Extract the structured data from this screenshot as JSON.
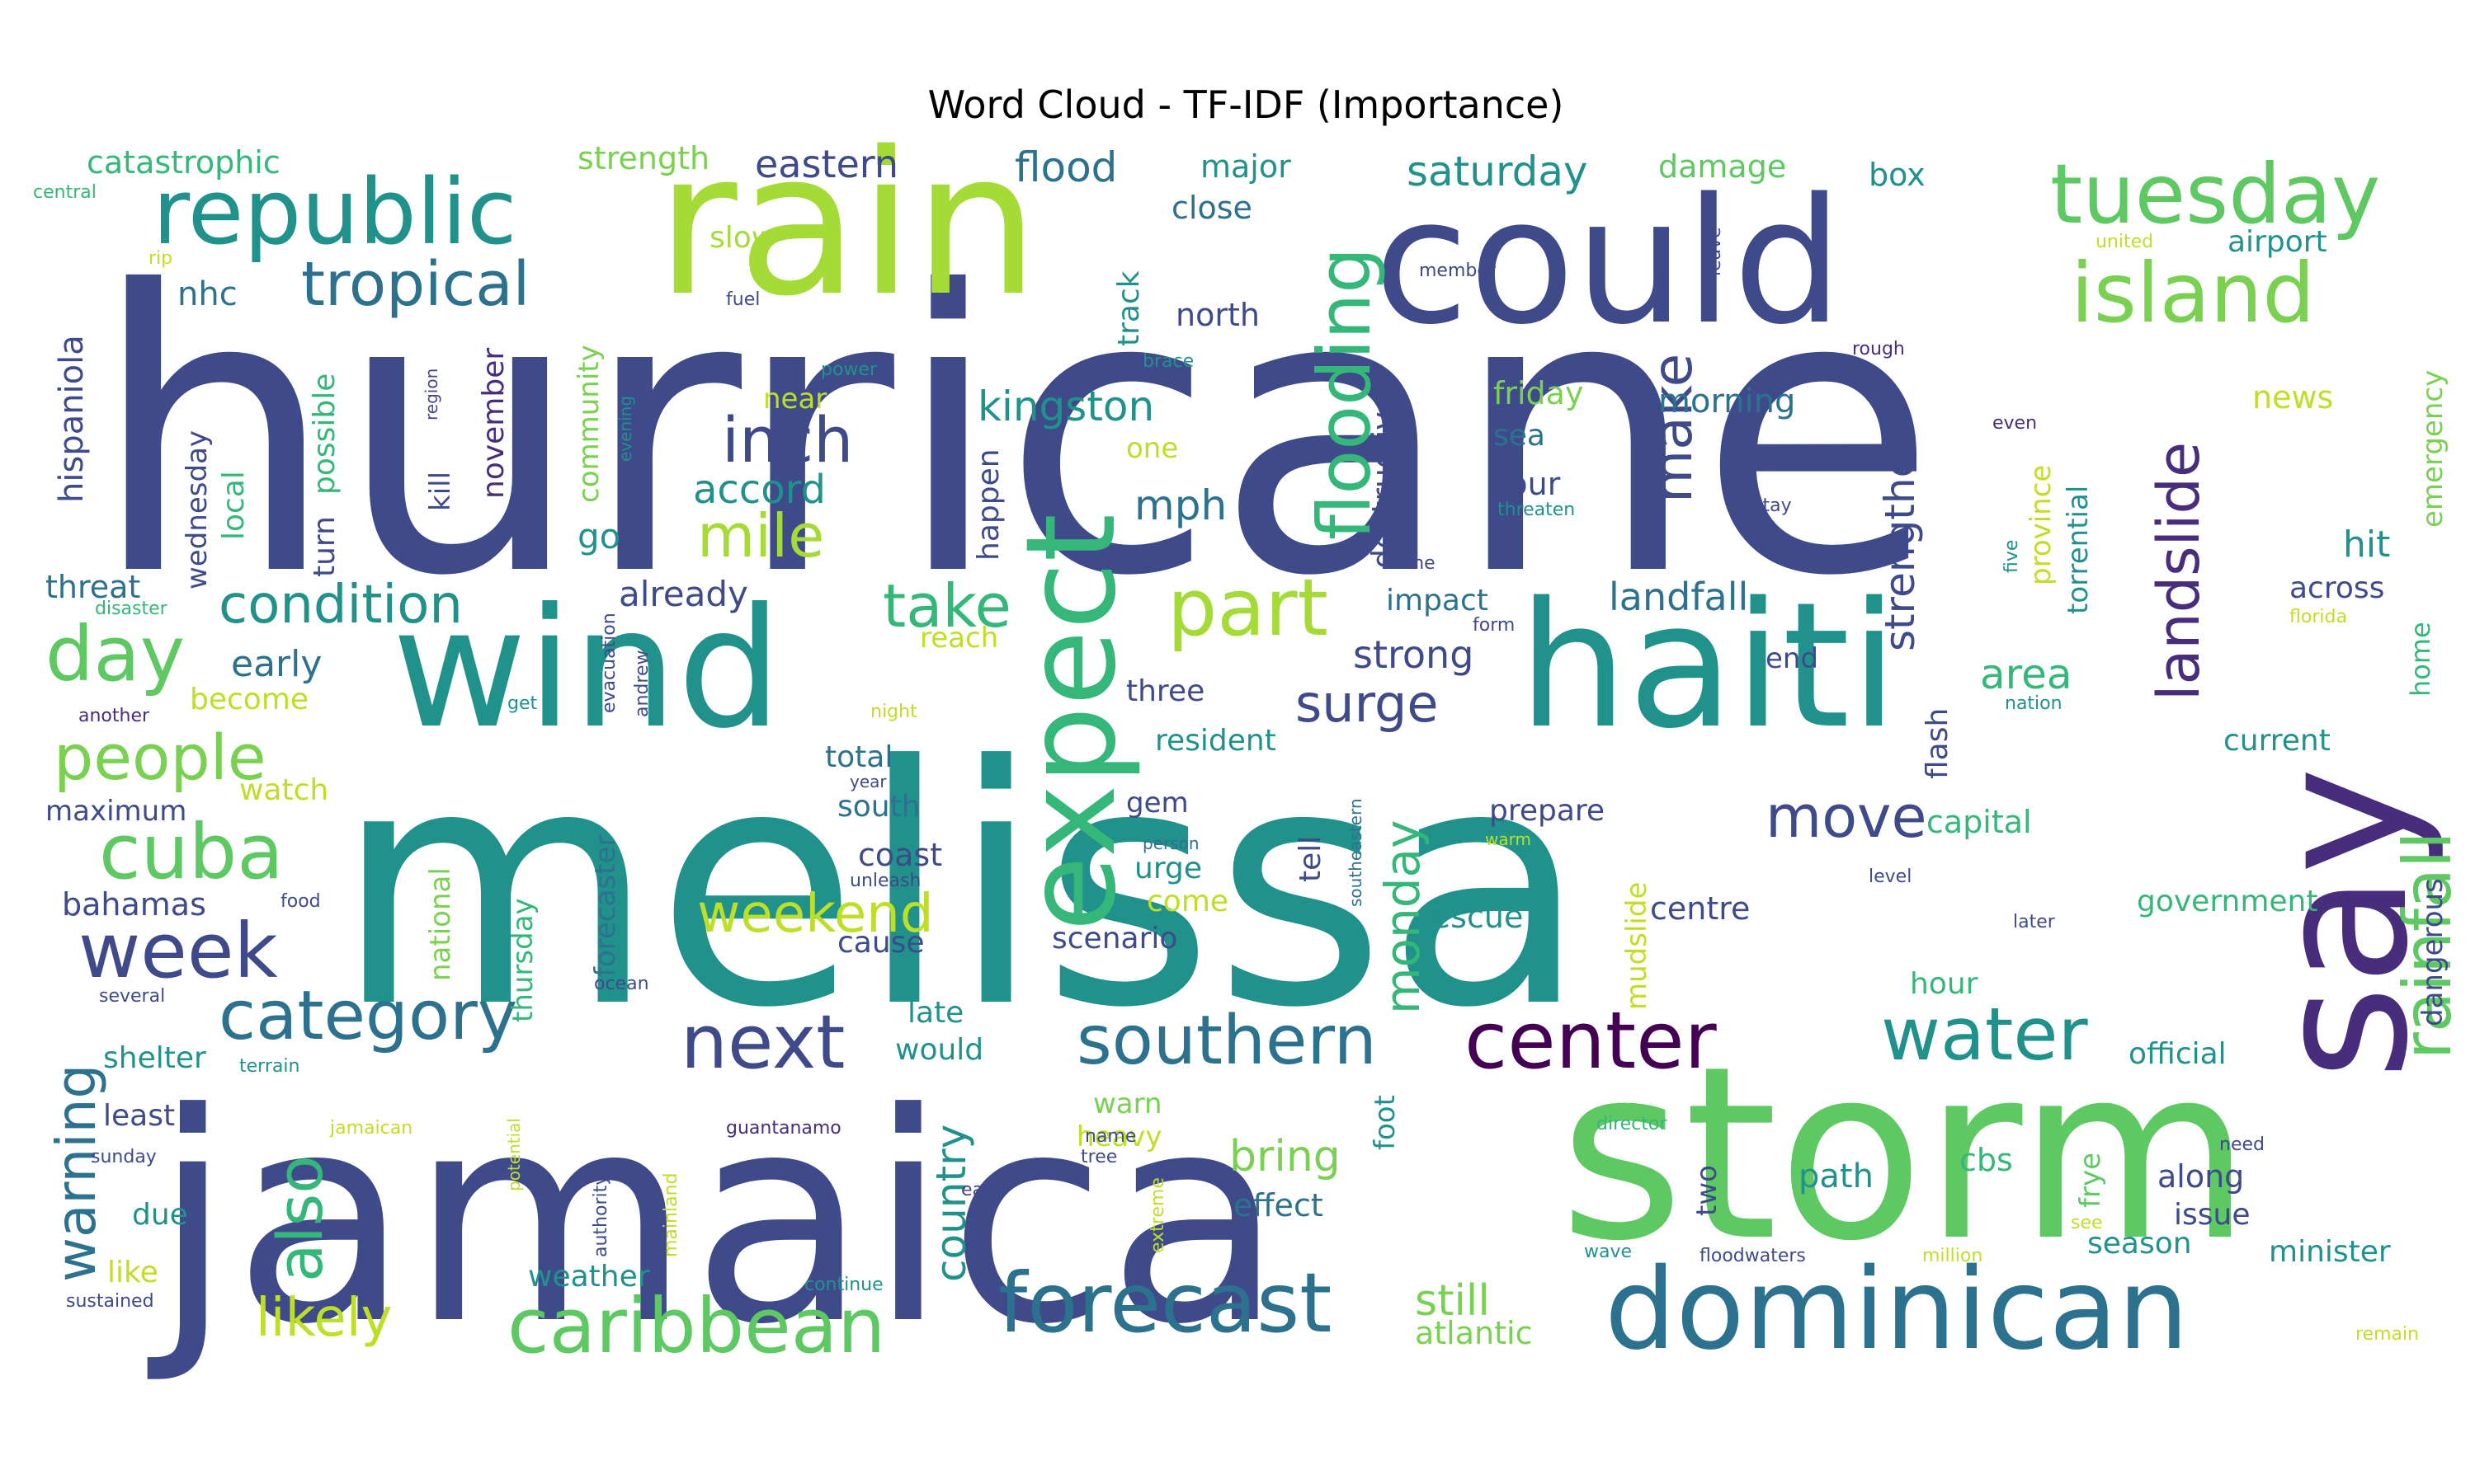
{
  "chart_data": {
    "type": "wordcloud",
    "title": "Word Cloud - TF-IDF (Importance)",
    "colormap": "viridis",
    "words": [
      {
        "text": "hurricane",
        "weight": 1.0,
        "color": "#3e4a89"
      },
      {
        "text": "melissa",
        "weight": 0.98,
        "color": "#21918c"
      },
      {
        "text": "jamaica",
        "weight": 0.9,
        "color": "#3e4a89"
      },
      {
        "text": "storm",
        "weight": 0.78,
        "color": "#5ec962"
      },
      {
        "text": "rain",
        "weight": 0.6,
        "color": "#a5db36"
      },
      {
        "text": "could",
        "weight": 0.56,
        "color": "#3e4a89"
      },
      {
        "text": "say",
        "weight": 0.58,
        "color": "#472d7b"
      },
      {
        "text": "haiti",
        "weight": 0.54,
        "color": "#21918c"
      },
      {
        "text": "wind",
        "weight": 0.5,
        "color": "#21918c"
      },
      {
        "text": "expect",
        "weight": 0.42,
        "color": "#35b779"
      },
      {
        "text": "dominican",
        "weight": 0.36,
        "color": "#2c728e"
      },
      {
        "text": "republic",
        "weight": 0.3,
        "color": "#21918c"
      },
      {
        "text": "tuesday",
        "weight": 0.28,
        "color": "#5ec962"
      },
      {
        "text": "island",
        "weight": 0.28,
        "color": "#7ad151"
      },
      {
        "text": "forecast",
        "weight": 0.26,
        "color": "#2c728e"
      },
      {
        "text": "caribbean",
        "weight": 0.24,
        "color": "#5ec962"
      },
      {
        "text": "center",
        "weight": 0.24,
        "color": "#440154"
      },
      {
        "text": "water",
        "weight": 0.24,
        "color": "#21918c"
      },
      {
        "text": "next",
        "weight": 0.24,
        "color": "#3e4a89"
      },
      {
        "text": "week",
        "weight": 0.24,
        "color": "#3e4a89"
      },
      {
        "text": "cuba",
        "weight": 0.24,
        "color": "#5ec962"
      },
      {
        "text": "part",
        "weight": 0.22,
        "color": "#a5db36"
      },
      {
        "text": "day",
        "weight": 0.22,
        "color": "#5ec962"
      },
      {
        "text": "category",
        "weight": 0.22,
        "color": "#2c728e"
      },
      {
        "text": "southern",
        "weight": 0.22,
        "color": "#2c728e"
      },
      {
        "text": "flooding",
        "weight": 0.22,
        "color": "#35b779"
      },
      {
        "text": "rainfall",
        "weight": 0.2,
        "color": "#5ec962"
      },
      {
        "text": "landslide",
        "weight": 0.18,
        "color": "#472d7b"
      },
      {
        "text": "tropical",
        "weight": 0.18,
        "color": "#2c728e"
      },
      {
        "text": "inch",
        "weight": 0.18,
        "color": "#3e4a89"
      },
      {
        "text": "people",
        "weight": 0.18,
        "color": "#7ad151"
      },
      {
        "text": "also",
        "weight": 0.18,
        "color": "#35b779"
      },
      {
        "text": "move",
        "weight": 0.16,
        "color": "#3e4a89"
      },
      {
        "text": "warning",
        "weight": 0.16,
        "color": "#2c728e"
      },
      {
        "text": "take",
        "weight": 0.16,
        "color": "#35b779"
      },
      {
        "text": "mile",
        "weight": 0.16,
        "color": "#a5db36"
      },
      {
        "text": "make",
        "weight": 0.16,
        "color": "#3e4a89"
      },
      {
        "text": "condition",
        "weight": 0.15,
        "color": "#21918c"
      },
      {
        "text": "weekend",
        "weight": 0.15,
        "color": "#bddf26"
      },
      {
        "text": "likely",
        "weight": 0.15,
        "color": "#bddf26"
      },
      {
        "text": "surge",
        "weight": 0.15,
        "color": "#3e4a89"
      },
      {
        "text": "monday",
        "weight": 0.15,
        "color": "#35b779"
      },
      {
        "text": "strengthen",
        "weight": 0.14,
        "color": "#3e4a89"
      },
      {
        "text": "kingston",
        "weight": 0.12,
        "color": "#21918c"
      },
      {
        "text": "accord",
        "weight": 0.12,
        "color": "#21918c"
      },
      {
        "text": "saturday",
        "weight": 0.12,
        "color": "#21918c"
      },
      {
        "text": "flood",
        "weight": 0.12,
        "color": "#2c728e"
      },
      {
        "text": "eastern",
        "weight": 0.12,
        "color": "#3e4a89"
      },
      {
        "text": "country",
        "weight": 0.12,
        "color": "#21918c"
      },
      {
        "text": "bring",
        "weight": 0.12,
        "color": "#7ad151"
      },
      {
        "text": "still",
        "weight": 0.12,
        "color": "#7ad151"
      },
      {
        "text": "landfall",
        "weight": 0.12,
        "color": "#2c728e"
      },
      {
        "text": "strong",
        "weight": 0.12,
        "color": "#3e4a89"
      },
      {
        "text": "area",
        "weight": 0.12,
        "color": "#35b779"
      },
      {
        "text": "mph",
        "weight": 0.12,
        "color": "#2c728e"
      },
      {
        "text": "hispaniola",
        "weight": 0.1,
        "color": "#3e4a89"
      },
      {
        "text": "already",
        "weight": 0.1,
        "color": "#3e4a89"
      },
      {
        "text": "go",
        "weight": 0.1,
        "color": "#21918c"
      },
      {
        "text": "early",
        "weight": 0.1,
        "color": "#2c728e"
      },
      {
        "text": "destructive",
        "weight": 0.1,
        "color": "#3e4a89"
      },
      {
        "text": "emergency",
        "weight": 0.08,
        "color": "#7ad151"
      },
      {
        "text": "hit",
        "weight": 0.1,
        "color": "#21918c"
      },
      {
        "text": "catastrophic",
        "weight": 0.08,
        "color": "#35b779"
      },
      {
        "text": "strength",
        "weight": 0.08,
        "color": "#7ad151"
      },
      {
        "text": "major",
        "weight": 0.08,
        "color": "#21918c"
      },
      {
        "text": "damage",
        "weight": 0.08,
        "color": "#5ec962"
      },
      {
        "text": "box",
        "weight": 0.08,
        "color": "#21918c"
      },
      {
        "text": "close",
        "weight": 0.08,
        "color": "#2c728e"
      },
      {
        "text": "nhc",
        "weight": 0.08,
        "color": "#2c728e"
      },
      {
        "text": "north",
        "weight": 0.08,
        "color": "#3e4a89"
      },
      {
        "text": "airport",
        "weight": 0.08,
        "color": "#21918c"
      },
      {
        "text": "friday",
        "weight": 0.08,
        "color": "#7ad151"
      },
      {
        "text": "morning",
        "weight": 0.08,
        "color": "#2c728e"
      },
      {
        "text": "news",
        "weight": 0.08,
        "color": "#bddf26"
      },
      {
        "text": "sea",
        "weight": 0.08,
        "color": "#2c728e"
      },
      {
        "text": "four",
        "weight": 0.08,
        "color": "#3e4a89"
      },
      {
        "text": "near",
        "weight": 0.08,
        "color": "#bddf26"
      },
      {
        "text": "one",
        "weight": 0.08,
        "color": "#bddf26"
      },
      {
        "text": "track",
        "weight": 0.08,
        "color": "#21918c"
      },
      {
        "text": "slow",
        "weight": 0.08,
        "color": "#a5db36"
      },
      {
        "text": "impact",
        "weight": 0.08,
        "color": "#2c728e"
      },
      {
        "text": "across",
        "weight": 0.08,
        "color": "#3e4a89"
      },
      {
        "text": "end",
        "weight": 0.08,
        "color": "#3e4a89"
      },
      {
        "text": "three",
        "weight": 0.08,
        "color": "#3e4a89"
      },
      {
        "text": "threat",
        "weight": 0.08,
        "color": "#2c728e"
      },
      {
        "text": "reach",
        "weight": 0.08,
        "color": "#bddf26"
      },
      {
        "text": "become",
        "weight": 0.08,
        "color": "#bddf26"
      },
      {
        "text": "resident",
        "weight": 0.08,
        "color": "#21918c"
      },
      {
        "text": "total",
        "weight": 0.08,
        "color": "#2c728e"
      },
      {
        "text": "current",
        "weight": 0.08,
        "color": "#21918c"
      },
      {
        "text": "watch",
        "weight": 0.08,
        "color": "#bddf26"
      },
      {
        "text": "maximum",
        "weight": 0.08,
        "color": "#3e4a89"
      },
      {
        "text": "south",
        "weight": 0.08,
        "color": "#2c728e"
      },
      {
        "text": "gem",
        "weight": 0.08,
        "color": "#3e4a89"
      },
      {
        "text": "prepare",
        "weight": 0.08,
        "color": "#3e4a89"
      },
      {
        "text": "capital",
        "weight": 0.08,
        "color": "#35b779"
      },
      {
        "text": "coast",
        "weight": 0.08,
        "color": "#3e4a89"
      },
      {
        "text": "urge",
        "weight": 0.08,
        "color": "#21918c"
      },
      {
        "text": "come",
        "weight": 0.08,
        "color": "#bddf26"
      },
      {
        "text": "rescue",
        "weight": 0.08,
        "color": "#21918c"
      },
      {
        "text": "centre",
        "weight": 0.08,
        "color": "#3e4a89"
      },
      {
        "text": "government",
        "weight": 0.08,
        "color": "#35b779"
      },
      {
        "text": "bahamas",
        "weight": 0.08,
        "color": "#3e4a89"
      },
      {
        "text": "cause",
        "weight": 0.08,
        "color": "#3e4a89"
      },
      {
        "text": "scenario",
        "weight": 0.08,
        "color": "#3e4a89"
      },
      {
        "text": "hour",
        "weight": 0.08,
        "color": "#35b779"
      },
      {
        "text": "late",
        "weight": 0.08,
        "color": "#21918c"
      },
      {
        "text": "would",
        "weight": 0.08,
        "color": "#21918c"
      },
      {
        "text": "warn",
        "weight": 0.08,
        "color": "#7ad151"
      },
      {
        "text": "heavy",
        "weight": 0.08,
        "color": "#bddf26"
      },
      {
        "text": "official",
        "weight": 0.08,
        "color": "#21918c"
      },
      {
        "text": "shelter",
        "weight": 0.08,
        "color": "#21918c"
      },
      {
        "text": "least",
        "weight": 0.08,
        "color": "#3e4a89"
      },
      {
        "text": "due",
        "weight": 0.08,
        "color": "#21918c"
      },
      {
        "text": "like",
        "weight": 0.08,
        "color": "#bddf26"
      },
      {
        "text": "weather",
        "weight": 0.08,
        "color": "#21918c"
      },
      {
        "text": "effect",
        "weight": 0.08,
        "color": "#2c728e"
      },
      {
        "text": "path",
        "weight": 0.08,
        "color": "#21918c"
      },
      {
        "text": "cbs",
        "weight": 0.08,
        "color": "#35b779"
      },
      {
        "text": "along",
        "weight": 0.08,
        "color": "#3e4a89"
      },
      {
        "text": "issue",
        "weight": 0.08,
        "color": "#3e4a89"
      },
      {
        "text": "season",
        "weight": 0.08,
        "color": "#21918c"
      },
      {
        "text": "minister",
        "weight": 0.08,
        "color": "#21918c"
      },
      {
        "text": "atlantic",
        "weight": 0.08,
        "color": "#7ad151"
      },
      {
        "text": "wednesday",
        "weight": 0.07,
        "color": "#3e4a89"
      },
      {
        "text": "local",
        "weight": 0.07,
        "color": "#35b779"
      },
      {
        "text": "turn",
        "weight": 0.07,
        "color": "#3e4a89"
      },
      {
        "text": "possible",
        "weight": 0.07,
        "color": "#35b779"
      },
      {
        "text": "community",
        "weight": 0.07,
        "color": "#7ad151"
      },
      {
        "text": "kill",
        "weight": 0.07,
        "color": "#3e4a89"
      },
      {
        "text": "november",
        "weight": 0.07,
        "color": "#472d7b"
      },
      {
        "text": "happen",
        "weight": 0.07,
        "color": "#3e4a89"
      },
      {
        "text": "province",
        "weight": 0.07,
        "color": "#bddf26"
      },
      {
        "text": "torrential",
        "weight": 0.07,
        "color": "#21918c"
      },
      {
        "text": "home",
        "weight": 0.07,
        "color": "#35b779"
      },
      {
        "text": "dangerous",
        "weight": 0.07,
        "color": "#3e4a89"
      },
      {
        "text": "flash",
        "weight": 0.07,
        "color": "#3e4a89"
      },
      {
        "text": "tell",
        "weight": 0.07,
        "color": "#3e4a89"
      },
      {
        "text": "forecaster",
        "weight": 0.07,
        "color": "#2c728e"
      },
      {
        "text": "national",
        "weight": 0.07,
        "color": "#7ad151"
      },
      {
        "text": "thursday",
        "weight": 0.07,
        "color": "#35b779"
      },
      {
        "text": "mudslide",
        "weight": 0.07,
        "color": "#bddf26"
      },
      {
        "text": "foot",
        "weight": 0.07,
        "color": "#21918c"
      },
      {
        "text": "two",
        "weight": 0.07,
        "color": "#3e4a89"
      },
      {
        "text": "frye",
        "weight": 0.07,
        "color": "#5ec962"
      },
      {
        "text": "central",
        "weight": 0.04,
        "color": "#35b779"
      },
      {
        "text": "rip",
        "weight": 0.04,
        "color": "#bddf26"
      },
      {
        "text": "fuel",
        "weight": 0.04,
        "color": "#3e4a89"
      },
      {
        "text": "power",
        "weight": 0.04,
        "color": "#21918c"
      },
      {
        "text": "brace",
        "weight": 0.04,
        "color": "#21918c"
      },
      {
        "text": "member",
        "weight": 0.04,
        "color": "#3e4a89"
      },
      {
        "text": "leave",
        "weight": 0.04,
        "color": "#3e4a89"
      },
      {
        "text": "united",
        "weight": 0.04,
        "color": "#bddf26"
      },
      {
        "text": "rough",
        "weight": 0.04,
        "color": "#472d7b"
      },
      {
        "text": "region",
        "weight": 0.04,
        "color": "#3e4a89"
      },
      {
        "text": "evening",
        "weight": 0.04,
        "color": "#21918c"
      },
      {
        "text": "even",
        "weight": 0.04,
        "color": "#472d7b"
      },
      {
        "text": "threaten",
        "weight": 0.04,
        "color": "#21918c"
      },
      {
        "text": "stay",
        "weight": 0.04,
        "color": "#3e4a89"
      },
      {
        "text": "five",
        "weight": 0.04,
        "color": "#21918c"
      },
      {
        "text": "time",
        "weight": 0.04,
        "color": "#3e4a89"
      },
      {
        "text": "form",
        "weight": 0.04,
        "color": "#3e4a89"
      },
      {
        "text": "florida",
        "weight": 0.04,
        "color": "#bddf26"
      },
      {
        "text": "disaster",
        "weight": 0.04,
        "color": "#35b779"
      },
      {
        "text": "evacuation",
        "weight": 0.04,
        "color": "#3e4a89"
      },
      {
        "text": "andrew",
        "weight": 0.04,
        "color": "#3e4a89"
      },
      {
        "text": "another",
        "weight": 0.04,
        "color": "#472d7b"
      },
      {
        "text": "get",
        "weight": 0.04,
        "color": "#21918c"
      },
      {
        "text": "night",
        "weight": 0.04,
        "color": "#bddf26"
      },
      {
        "text": "nation",
        "weight": 0.04,
        "color": "#21918c"
      },
      {
        "text": "year",
        "weight": 0.04,
        "color": "#3e4a89"
      },
      {
        "text": "southeastern",
        "weight": 0.04,
        "color": "#2c728e"
      },
      {
        "text": "person",
        "weight": 0.04,
        "color": "#2c728e"
      },
      {
        "text": "warm",
        "weight": 0.04,
        "color": "#bddf26"
      },
      {
        "text": "unleash",
        "weight": 0.04,
        "color": "#3e4a89"
      },
      {
        "text": "food",
        "weight": 0.04,
        "color": "#3e4a89"
      },
      {
        "text": "level",
        "weight": 0.04,
        "color": "#3e4a89"
      },
      {
        "text": "later",
        "weight": 0.04,
        "color": "#3e4a89"
      },
      {
        "text": "ocean",
        "weight": 0.04,
        "color": "#3e4a89"
      },
      {
        "text": "several",
        "weight": 0.04,
        "color": "#3e4a89"
      },
      {
        "text": "terrain",
        "weight": 0.04,
        "color": "#21918c"
      },
      {
        "text": "potential",
        "weight": 0.04,
        "color": "#bddf26"
      },
      {
        "text": "sunday",
        "weight": 0.04,
        "color": "#3e4a89"
      },
      {
        "text": "jamaican",
        "weight": 0.04,
        "color": "#bddf26"
      },
      {
        "text": "guantanamo",
        "weight": 0.04,
        "color": "#472d7b"
      },
      {
        "text": "name",
        "weight": 0.04,
        "color": "#3e4a89"
      },
      {
        "text": "tree",
        "weight": 0.04,
        "color": "#3e4a89"
      },
      {
        "text": "director",
        "weight": 0.04,
        "color": "#35b779"
      },
      {
        "text": "need",
        "weight": 0.04,
        "color": "#3e4a89"
      },
      {
        "text": "authority",
        "weight": 0.04,
        "color": "#3e4a89"
      },
      {
        "text": "mainland",
        "weight": 0.04,
        "color": "#bddf26"
      },
      {
        "text": "east",
        "weight": 0.04,
        "color": "#3e4a89"
      },
      {
        "text": "extreme",
        "weight": 0.04,
        "color": "#bddf26"
      },
      {
        "text": "wave",
        "weight": 0.04,
        "color": "#21918c"
      },
      {
        "text": "floodwaters",
        "weight": 0.04,
        "color": "#3e4a89"
      },
      {
        "text": "million",
        "weight": 0.04,
        "color": "#bddf26"
      },
      {
        "text": "see",
        "weight": 0.04,
        "color": "#bddf26"
      },
      {
        "text": "continue",
        "weight": 0.04,
        "color": "#21918c"
      },
      {
        "text": "sustained",
        "weight": 0.04,
        "color": "#3e4a89"
      },
      {
        "text": "remain",
        "weight": 0.04,
        "color": "#bddf26"
      }
    ]
  }
}
